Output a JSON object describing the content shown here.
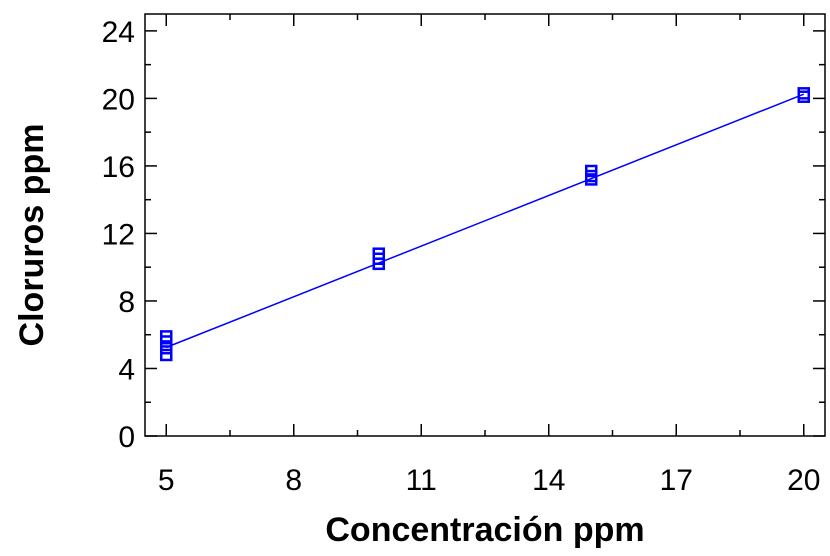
{
  "chart_data": {
    "type": "scatter",
    "title": "",
    "xlabel": "Concentración ppm",
    "ylabel": "Cloruros ppm",
    "xlim": [
      4.5,
      20.5
    ],
    "ylim": [
      0,
      25
    ],
    "xticks": [
      5,
      8,
      11,
      14,
      17,
      20
    ],
    "yticks": [
      0,
      4,
      8,
      12,
      16,
      20,
      24
    ],
    "grid": false,
    "marker_color": "#0000ff",
    "series": [
      {
        "marker": "square",
        "x": [
          5,
          5,
          5,
          5,
          10,
          10,
          10,
          15,
          15,
          15,
          20,
          20
        ],
        "y": [
          4.8,
          5.2,
          5.6,
          5.9,
          10.2,
          10.5,
          10.8,
          15.2,
          15.4,
          15.7,
          20.1,
          20.3
        ]
      }
    ],
    "fit_line": {
      "type": "linear",
      "x": [
        5,
        20
      ],
      "y": [
        5.25,
        20.25
      ],
      "color": "#0000ff"
    }
  }
}
